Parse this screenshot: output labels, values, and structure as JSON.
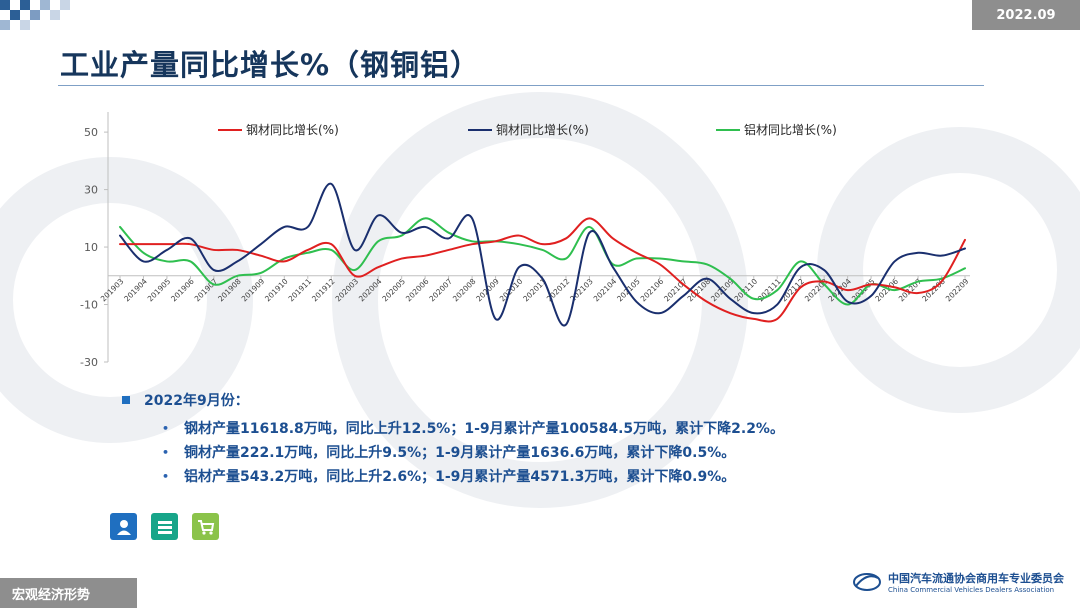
{
  "header": {
    "date": "2022.09",
    "title": "工业产量同比增长%（钢铜铝）"
  },
  "footer": {
    "section": "宏观经济形势",
    "org_cn": "中国汽车流通协会商用车专业委员会",
    "org_en": "China Commercial Vehicles Dealers Association"
  },
  "summary": {
    "heading": "2022年9月份：",
    "lines": [
      "钢材产量11618.8万吨，同比上升12.5%；1-9月累计产量100584.5万吨，累计下降2.2%。",
      "铜材产量222.1万吨，同比上升9.5%；1-9月累计产量1636.6万吨，累计下降0.5%。",
      "铝材产量543.2万吨，同比上升2.6%；1-9月累计产量4571.3万吨，累计下降0.9%。"
    ]
  },
  "icons": [
    "person-icon",
    "stack-icon",
    "cart-icon"
  ],
  "colors": {
    "steel": "#e02020",
    "copper": "#1a2f6e",
    "aluminum": "#2fbf4f",
    "title": "#16365c"
  },
  "chart_data": {
    "type": "line",
    "categories": [
      "201903",
      "201904",
      "201905",
      "201906",
      "201907",
      "201908",
      "201909",
      "201910",
      "201911",
      "201912",
      "202003",
      "202004",
      "202005",
      "202006",
      "202007",
      "202008",
      "202009",
      "202010",
      "202011",
      "202012",
      "202103",
      "202104",
      "202105",
      "202106",
      "202107",
      "202108",
      "202109",
      "202110",
      "202111",
      "202112",
      "202203",
      "202204",
      "202205",
      "202206",
      "202207",
      "202208",
      "202209"
    ],
    "series": [
      {
        "name": "钢材同比增长(%)",
        "color": "#e02020",
        "values": [
          11,
          11,
          11,
          11,
          9,
          9,
          7,
          5,
          9,
          11,
          0,
          3,
          6,
          7,
          9,
          11,
          12,
          14,
          11,
          13,
          20,
          13,
          8,
          4,
          -3,
          -9,
          -13,
          -15,
          -15,
          -4,
          -2,
          -5,
          -3,
          -4,
          -6,
          -2,
          12.5
        ]
      },
      {
        "name": "铜材同比增长(%)",
        "color": "#1a2f6e",
        "values": [
          14,
          5,
          9,
          13,
          2,
          5,
          11,
          17,
          17,
          32,
          9,
          21,
          15,
          17,
          13,
          20,
          -15,
          3,
          -1,
          -17,
          15,
          3,
          -9,
          -13,
          -7,
          -1,
          -8,
          -13,
          -10,
          3,
          2,
          -9,
          -7,
          5,
          8,
          7,
          9.5
        ]
      },
      {
        "name": "铝材同比增长(%)",
        "color": "#2fbf4f",
        "values": [
          17,
          8,
          5,
          5,
          -3,
          0,
          1,
          6,
          8,
          9,
          2,
          12,
          14,
          20,
          15,
          12,
          12,
          11,
          9,
          6,
          17,
          4,
          6,
          6,
          5,
          4,
          -1,
          -8,
          -5,
          5,
          -3,
          -10,
          -3,
          -5,
          -2,
          -1,
          2.6
        ]
      }
    ],
    "yticks": [
      50,
      30,
      10,
      -10,
      -30
    ],
    "ylim": [
      -30,
      57
    ],
    "grid": false,
    "legend": "top"
  }
}
